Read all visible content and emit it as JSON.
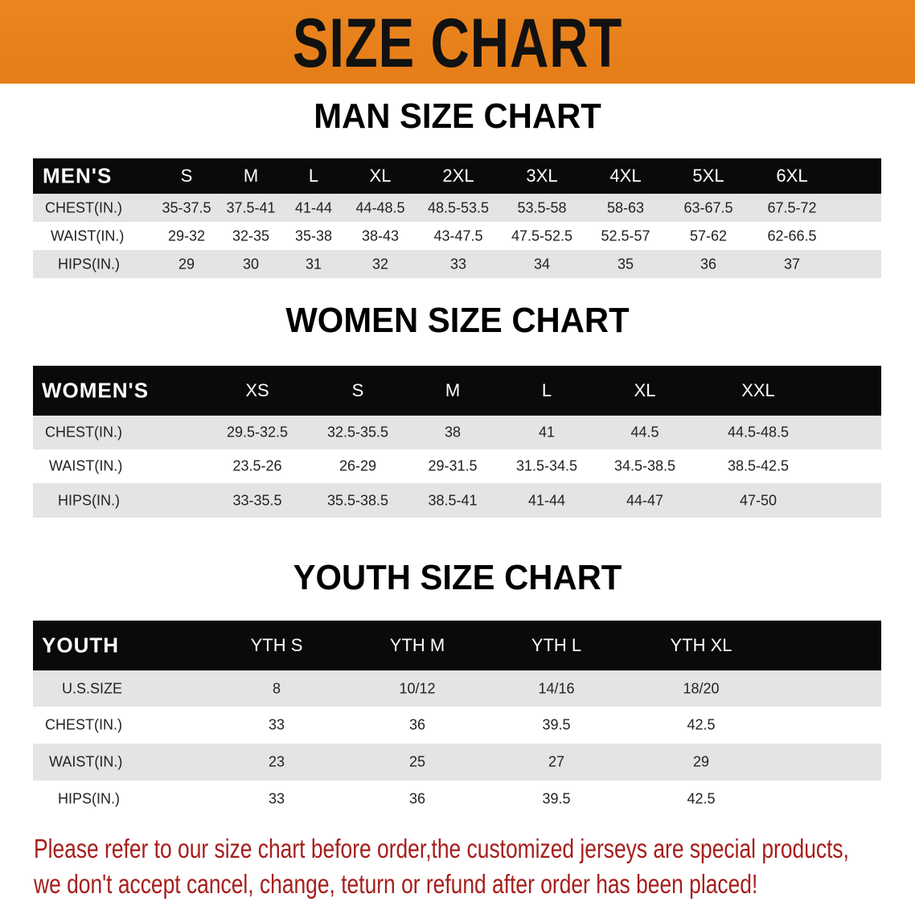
{
  "banner": {
    "title": "SIZE CHART",
    "color": "#e8801e"
  },
  "men": {
    "heading": "MAN SIZE CHART",
    "header": [
      "MEN'S",
      "S",
      "M",
      "L",
      "XL",
      "2XL",
      "3XL",
      "4XL",
      "5XL",
      "6XL"
    ],
    "rows": [
      [
        "CHEST(IN.)",
        "35-37.5",
        "37.5-41",
        "41-44",
        "44-48.5",
        "48.5-53.5",
        "53.5-58",
        "58-63",
        "63-67.5",
        "67.5-72"
      ],
      [
        "WAIST(IN.)",
        "29-32",
        "32-35",
        "35-38",
        "38-43",
        "43-47.5",
        "47.5-52.5",
        "52.5-57",
        "57-62",
        "62-66.5"
      ],
      [
        "HIPS(IN.)",
        "29",
        "30",
        "31",
        "32",
        "33",
        "34",
        "35",
        "36",
        "37"
      ]
    ]
  },
  "women": {
    "heading": "WOMEN SIZE CHART",
    "header": [
      "WOMEN'S",
      "XS",
      "S",
      "M",
      "L",
      "XL",
      "XXL"
    ],
    "rows": [
      [
        "CHEST(IN.)",
        "29.5-32.5",
        "32.5-35.5",
        "38",
        "41",
        "44.5",
        "44.5-48.5"
      ],
      [
        "WAIST(IN.)",
        "23.5-26",
        "26-29",
        "29-31.5",
        "31.5-34.5",
        "34.5-38.5",
        "38.5-42.5"
      ],
      [
        "HIPS(IN.)",
        "33-35.5",
        "35.5-38.5",
        "38.5-41",
        "41-44",
        "44-47",
        "47-50"
      ]
    ]
  },
  "youth": {
    "heading": "YOUTH SIZE CHART",
    "header": [
      "YOUTH",
      "YTH S",
      "YTH M",
      "YTH L",
      "YTH XL"
    ],
    "rows": [
      [
        "U.S.SIZE",
        "8",
        "10/12",
        "14/16",
        "18/20"
      ],
      [
        "CHEST(IN.)",
        "33",
        "36",
        "39.5",
        "42.5"
      ],
      [
        "WAIST(IN.)",
        "23",
        "25",
        "27",
        "29"
      ],
      [
        "HIPS(IN.)",
        "33",
        "36",
        "39.5",
        "42.5"
      ]
    ]
  },
  "note": {
    "line1": "Please refer to our size chart before order,the customized jerseys are special products,",
    "line2": "we don't accept cancel, change, teturn or refund after order has been placed!",
    "color": "#a61e1b"
  }
}
